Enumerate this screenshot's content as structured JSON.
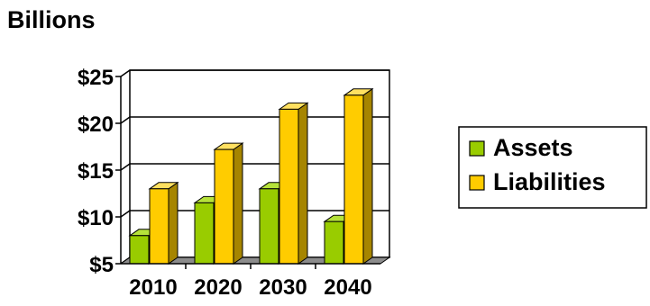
{
  "chart_data": {
    "type": "bar",
    "title": "",
    "ylabel": "Billions",
    "xlabel": "",
    "categories": [
      "2010",
      "2020",
      "2030",
      "2040"
    ],
    "series": [
      {
        "name": "Assets",
        "values": [
          8,
          11.5,
          13,
          9.5
        ]
      },
      {
        "name": "Liabilities",
        "values": [
          13,
          17.2,
          21.5,
          23
        ]
      }
    ],
    "ylim": [
      5,
      25
    ],
    "yticks": [
      5,
      10,
      15,
      20,
      25
    ],
    "ytick_labels": [
      "$5",
      "$10",
      "$15",
      "$20",
      "$25"
    ],
    "grid": true,
    "legend_position": "right",
    "style": "3d-bar"
  },
  "colors": {
    "assets_front": "#99cc00",
    "assets_side": "#5f7f00",
    "assets_top": "#b6e23a",
    "liabilities_front": "#ffcc00",
    "liabilities_side": "#a68500",
    "liabilities_top": "#ffe060",
    "floor": "#8c8c8c",
    "gridline": "#000000"
  }
}
